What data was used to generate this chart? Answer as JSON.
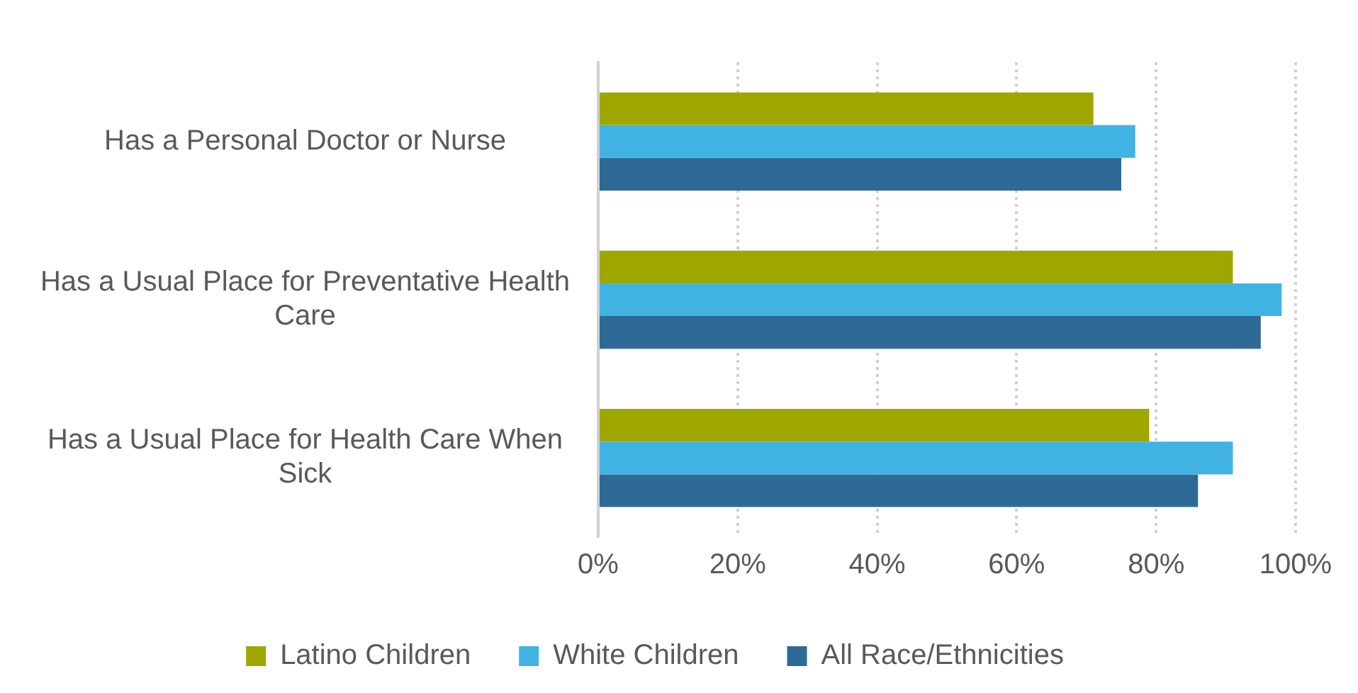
{
  "chart_data": {
    "type": "bar",
    "orientation": "horizontal",
    "categories": [
      "Has a Personal Doctor or Nurse",
      "Has a Usual Place for Preventative Health Care",
      "Has a Usual Place for Health Care When Sick"
    ],
    "series": [
      {
        "name": "Latino Children",
        "color": "#9ea700",
        "values": [
          71,
          91,
          79
        ]
      },
      {
        "name": "White Children",
        "color": "#41b3e3",
        "values": [
          77,
          98,
          91
        ]
      },
      {
        "name": "All Race/Ethnicities",
        "color": "#2e6a96",
        "values": [
          75,
          95,
          86
        ]
      }
    ],
    "xlim": [
      0,
      100
    ],
    "xticks": [
      {
        "value": 0,
        "label": "0%"
      },
      {
        "value": 20,
        "label": "20%"
      },
      {
        "value": 40,
        "label": "40%"
      },
      {
        "value": 60,
        "label": "60%"
      },
      {
        "value": 80,
        "label": "80%"
      },
      {
        "value": 100,
        "label": "100%"
      }
    ],
    "grid": "x",
    "legend": "bottom"
  }
}
